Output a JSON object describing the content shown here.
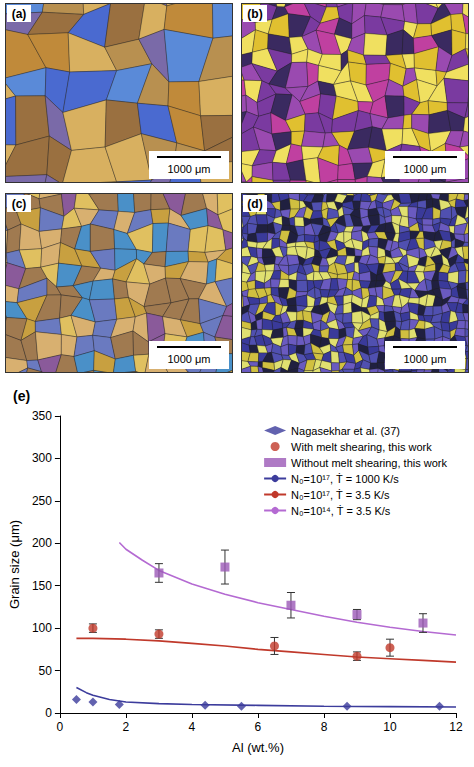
{
  "panels": [
    {
      "label": "(a)",
      "scale_bar": "1000 μm"
    },
    {
      "label": "(b)",
      "scale_bar": "1000 μm"
    },
    {
      "label": "(c)",
      "scale_bar": "1000 μm"
    },
    {
      "label": "(d)",
      "scale_bar": "1000 μm"
    }
  ],
  "chart_data": {
    "type": "scatter",
    "title": "(e)",
    "x_label": "Al (wt.%)",
    "y_label": "Grain size (μm)",
    "xlim": [
      0,
      12
    ],
    "xticks": [
      0,
      2,
      4,
      6,
      8,
      10,
      12
    ],
    "ylim": [
      0,
      350
    ],
    "yticks": [
      0,
      50,
      100,
      150,
      200,
      250,
      300,
      350
    ],
    "grid": false,
    "legend": "upper right",
    "series": [
      {
        "name": "Nagasekhar et al. (37)",
        "type": "scatter",
        "marker": "diamond",
        "color": "#3b3b9b",
        "x": [
          0.5,
          1,
          1.8,
          4.4,
          5.5,
          8.7,
          11.5
        ],
        "values": [
          16,
          13,
          10,
          9,
          8,
          8,
          8
        ]
      },
      {
        "name": "With melt shearing, this work",
        "type": "scatter",
        "marker": "circle",
        "color": "#c0392b",
        "x": [
          1,
          3,
          6.5,
          9,
          10
        ],
        "values": [
          100,
          93,
          79,
          67,
          77
        ],
        "errors": [
          5,
          5,
          10,
          5,
          10
        ]
      },
      {
        "name": "Without melt shearing, this work",
        "type": "scatter",
        "marker": "square",
        "color": "#9b59b6",
        "x": [
          3,
          5,
          7,
          9,
          11
        ],
        "values": [
          165,
          172,
          127,
          116,
          106
        ],
        "errors": [
          11,
          20,
          15,
          6,
          11
        ]
      },
      {
        "name": "N₀=10¹⁷, Ṫ = 1000 K/s",
        "type": "line",
        "line_style": "solid",
        "color": "#3c3c9c",
        "x": [
          0.5,
          0.8,
          1,
          1.5,
          2,
          3,
          4,
          6,
          8,
          10,
          12
        ],
        "values": [
          30,
          24,
          21,
          16,
          13,
          11,
          10,
          9,
          8,
          7.5,
          7
        ]
      },
      {
        "name": "N₀=10¹⁷, Ṫ = 3.5 K/s",
        "type": "line",
        "line_style": "solid",
        "color": "#c0392b",
        "x": [
          0.5,
          1,
          2,
          3,
          4,
          5,
          6,
          7,
          8,
          9,
          10,
          11,
          12
        ],
        "values": [
          88,
          88,
          87,
          85,
          82,
          79,
          75,
          72,
          69,
          66,
          64,
          62,
          60
        ]
      },
      {
        "name": "N₀=10¹⁴, Ṫ = 3.5 K/s",
        "type": "line",
        "line_style": "solid",
        "color": "#b46ad2",
        "x": [
          1.8,
          2,
          2.5,
          3,
          4,
          5,
          6,
          7,
          8,
          9,
          10,
          11,
          12
        ],
        "values": [
          201,
          193,
          180,
          168,
          152,
          140,
          130,
          122,
          114,
          107,
          101,
          96,
          92
        ]
      }
    ]
  }
}
